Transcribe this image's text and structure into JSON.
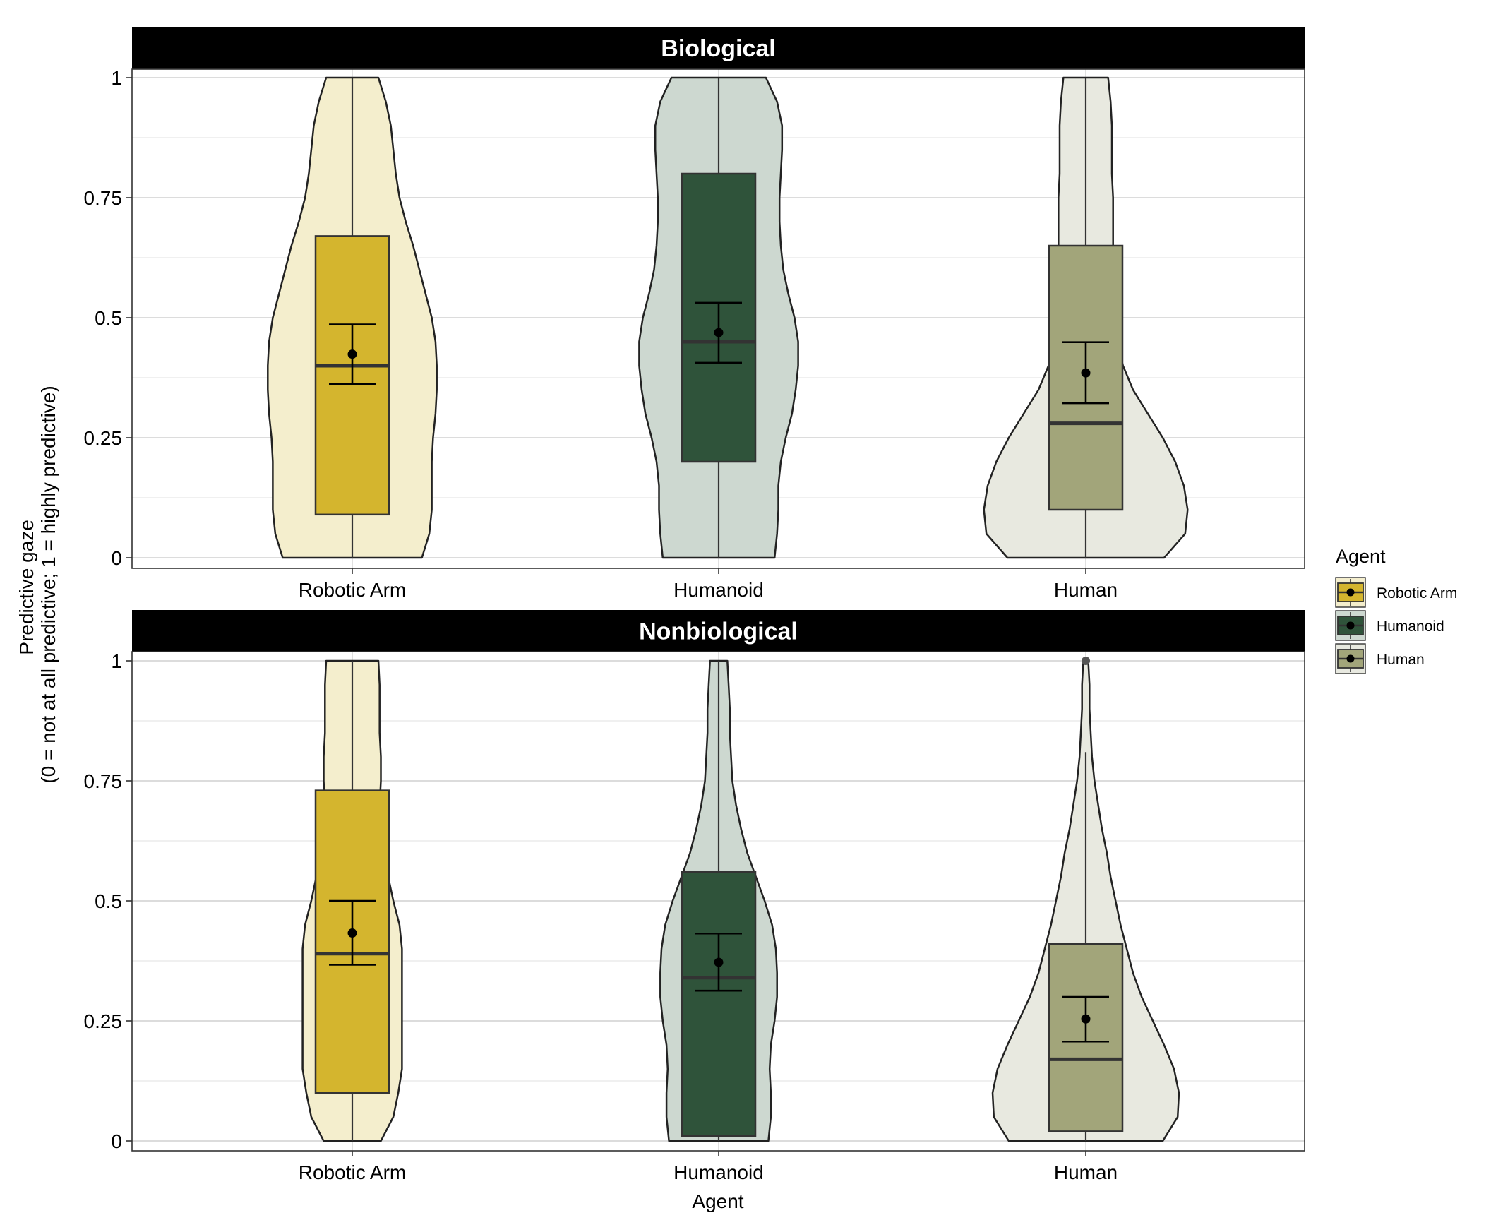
{
  "chart_data": {
    "type": "violin",
    "xlabel": "Agent",
    "ylabel_lines": [
      "Predictive gaze",
      "(0 = not at all predictive; 1 = highly predictive)"
    ],
    "ylim": [
      0,
      1
    ],
    "y_ticks": [
      "0",
      "0.25",
      "0.5",
      "0.75",
      "1"
    ],
    "y_tick_values": [
      0,
      0.25,
      0.5,
      0.75,
      1
    ],
    "categories": [
      "Robotic Arm",
      "Humanoid",
      "Human"
    ],
    "legend": {
      "title": "Agent",
      "position": "right",
      "entries": [
        {
          "label": "Robotic Arm",
          "color": "#d4b52e"
        },
        {
          "label": "Humanoid",
          "color": "#2f533a"
        },
        {
          "label": "Human",
          "color": "#a2a57a"
        }
      ]
    },
    "violin_fill_colors": [
      "#f4eecd",
      "#cdd8d0",
      "#e8e9e0"
    ],
    "grid": true,
    "panels": [
      {
        "title": "Biological",
        "groups": [
          {
            "category": "Robotic Arm",
            "box": {
              "q1": 0.09,
              "median": 0.4,
              "q3": 0.67,
              "whisker_low": 0,
              "whisker_high": 1
            },
            "mean": 0.424,
            "ci": [
              0.362,
              0.486
            ],
            "density": [
              [
                0,
                0.56
              ],
              [
                0.05,
                0.62
              ],
              [
                0.1,
                0.64
              ],
              [
                0.15,
                0.64
              ],
              [
                0.2,
                0.64
              ],
              [
                0.25,
                0.65
              ],
              [
                0.3,
                0.67
              ],
              [
                0.35,
                0.68
              ],
              [
                0.4,
                0.68
              ],
              [
                0.45,
                0.67
              ],
              [
                0.5,
                0.64
              ],
              [
                0.55,
                0.59
              ],
              [
                0.6,
                0.54
              ],
              [
                0.65,
                0.49
              ],
              [
                0.7,
                0.43
              ],
              [
                0.75,
                0.38
              ],
              [
                0.8,
                0.35
              ],
              [
                0.85,
                0.33
              ],
              [
                0.9,
                0.31
              ],
              [
                0.95,
                0.27
              ],
              [
                1,
                0.21
              ]
            ]
          },
          {
            "category": "Humanoid",
            "box": {
              "q1": 0.2,
              "median": 0.45,
              "q3": 0.8,
              "whisker_low": 0,
              "whisker_high": 1
            },
            "mean": 0.469,
            "ci": [
              0.406,
              0.531
            ],
            "density": [
              [
                0,
                0.45
              ],
              [
                0.05,
                0.47
              ],
              [
                0.1,
                0.48
              ],
              [
                0.15,
                0.48
              ],
              [
                0.2,
                0.5
              ],
              [
                0.25,
                0.54
              ],
              [
                0.3,
                0.59
              ],
              [
                0.35,
                0.62
              ],
              [
                0.4,
                0.64
              ],
              [
                0.45,
                0.64
              ],
              [
                0.5,
                0.61
              ],
              [
                0.55,
                0.56
              ],
              [
                0.6,
                0.52
              ],
              [
                0.65,
                0.5
              ],
              [
                0.7,
                0.49
              ],
              [
                0.75,
                0.49
              ],
              [
                0.8,
                0.5
              ],
              [
                0.85,
                0.51
              ],
              [
                0.9,
                0.51
              ],
              [
                0.95,
                0.47
              ],
              [
                1,
                0.38
              ]
            ]
          },
          {
            "category": "Human",
            "box": {
              "q1": 0.1,
              "median": 0.28,
              "q3": 0.65,
              "whisker_low": 0,
              "whisker_high": 1
            },
            "mean": 0.385,
            "ci": [
              0.322,
              0.449
            ],
            "density": [
              [
                0,
                0.63
              ],
              [
                0.05,
                0.8
              ],
              [
                0.1,
                0.82
              ],
              [
                0.15,
                0.79
              ],
              [
                0.2,
                0.72
              ],
              [
                0.25,
                0.62
              ],
              [
                0.3,
                0.5
              ],
              [
                0.35,
                0.38
              ],
              [
                0.4,
                0.3
              ],
              [
                0.45,
                0.25
              ],
              [
                0.5,
                0.23
              ],
              [
                0.55,
                0.22
              ],
              [
                0.6,
                0.22
              ],
              [
                0.65,
                0.22
              ],
              [
                0.7,
                0.22
              ],
              [
                0.75,
                0.22
              ],
              [
                0.8,
                0.21
              ],
              [
                0.85,
                0.21
              ],
              [
                0.9,
                0.21
              ],
              [
                0.95,
                0.2
              ],
              [
                1,
                0.18
              ]
            ]
          }
        ]
      },
      {
        "title": "Nonbiological",
        "groups": [
          {
            "category": "Robotic Arm",
            "box": {
              "q1": 0.1,
              "median": 0.39,
              "q3": 0.73,
              "whisker_low": 0,
              "whisker_high": 1
            },
            "mean": 0.433,
            "ci": [
              0.367,
              0.5
            ],
            "density": [
              [
                0,
                0.23
              ],
              [
                0.05,
                0.33
              ],
              [
                0.1,
                0.37
              ],
              [
                0.15,
                0.4
              ],
              [
                0.2,
                0.4
              ],
              [
                0.25,
                0.4
              ],
              [
                0.3,
                0.4
              ],
              [
                0.35,
                0.4
              ],
              [
                0.4,
                0.4
              ],
              [
                0.45,
                0.38
              ],
              [
                0.5,
                0.33
              ],
              [
                0.55,
                0.29
              ],
              [
                0.6,
                0.24
              ],
              [
                0.65,
                0.21
              ],
              [
                0.7,
                0.22
              ],
              [
                0.75,
                0.23
              ],
              [
                0.8,
                0.23
              ],
              [
                0.85,
                0.22
              ],
              [
                0.9,
                0.22
              ],
              [
                0.95,
                0.22
              ],
              [
                1,
                0.21
              ]
            ]
          },
          {
            "category": "Humanoid",
            "box": {
              "q1": 0.01,
              "median": 0.34,
              "q3": 0.56,
              "whisker_low": 0,
              "whisker_high": 1
            },
            "mean": 0.372,
            "ci": [
              0.313,
              0.432
            ],
            "density": [
              [
                0,
                0.4
              ],
              [
                0.05,
                0.42
              ],
              [
                0.1,
                0.42
              ],
              [
                0.15,
                0.41
              ],
              [
                0.2,
                0.42
              ],
              [
                0.25,
                0.45
              ],
              [
                0.3,
                0.47
              ],
              [
                0.35,
                0.47
              ],
              [
                0.4,
                0.46
              ],
              [
                0.45,
                0.43
              ],
              [
                0.5,
                0.37
              ],
              [
                0.55,
                0.3
              ],
              [
                0.6,
                0.23
              ],
              [
                0.65,
                0.18
              ],
              [
                0.7,
                0.14
              ],
              [
                0.75,
                0.11
              ],
              [
                0.8,
                0.1
              ],
              [
                0.85,
                0.09
              ],
              [
                0.9,
                0.09
              ],
              [
                0.95,
                0.08
              ],
              [
                1,
                0.07
              ]
            ]
          },
          {
            "category": "Human",
            "box": {
              "q1": 0.02,
              "median": 0.17,
              "q3": 0.41,
              "whisker_low": 0,
              "whisker_high": 0.81
            },
            "mean": 0.254,
            "ci": [
              0.207,
              0.3
            ],
            "density": [
              [
                0,
                0.62
              ],
              [
                0.05,
                0.74
              ],
              [
                0.1,
                0.75
              ],
              [
                0.15,
                0.71
              ],
              [
                0.2,
                0.63
              ],
              [
                0.25,
                0.54
              ],
              [
                0.3,
                0.45
              ],
              [
                0.35,
                0.38
              ],
              [
                0.4,
                0.33
              ],
              [
                0.45,
                0.28
              ],
              [
                0.5,
                0.24
              ],
              [
                0.55,
                0.2
              ],
              [
                0.6,
                0.17
              ],
              [
                0.65,
                0.13
              ],
              [
                0.7,
                0.1
              ],
              [
                0.75,
                0.07
              ],
              [
                0.8,
                0.05
              ],
              [
                0.85,
                0.04
              ],
              [
                0.9,
                0.03
              ],
              [
                0.95,
                0.03
              ],
              [
                1,
                0.02
              ]
            ],
            "outliers": [
              1.0
            ]
          }
        ]
      }
    ]
  }
}
